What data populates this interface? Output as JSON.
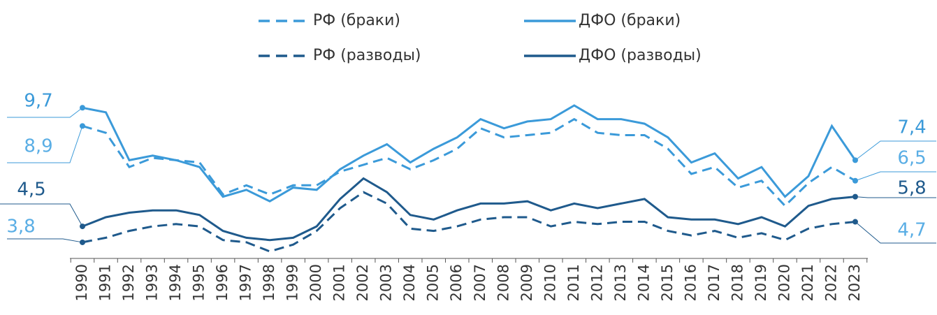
{
  "chart_data": {
    "type": "line",
    "categories": [
      "1990",
      "1991",
      "1992",
      "1993",
      "1994",
      "1995",
      "1996",
      "1997",
      "1998",
      "1999",
      "2000",
      "2001",
      "2002",
      "2003",
      "2004",
      "2005",
      "2006",
      "2007",
      "2008",
      "2009",
      "2010",
      "2011",
      "2012",
      "2013",
      "2014",
      "2015",
      "2016",
      "2017",
      "2018",
      "2019",
      "2020",
      "2021",
      "2022",
      "2023"
    ],
    "series": [
      {
        "name": "РФ (браки)",
        "color": "#3b9ad9",
        "dashed": true,
        "values": [
          8.9,
          8.6,
          7.1,
          7.5,
          7.4,
          7.3,
          5.9,
          6.3,
          5.9,
          6.3,
          6.3,
          6.9,
          7.2,
          7.5,
          7.0,
          7.4,
          7.9,
          8.8,
          8.4,
          8.5,
          8.6,
          9.2,
          8.6,
          8.5,
          8.5,
          7.9,
          6.8,
          7.1,
          6.2,
          6.5,
          5.4,
          6.4,
          7.1,
          6.5
        ],
        "value_labels": [
          "8,9",
          null,
          null,
          null,
          null,
          null,
          null,
          null,
          null,
          null,
          null,
          null,
          null,
          null,
          null,
          null,
          null,
          null,
          null,
          null,
          null,
          null,
          null,
          null,
          null,
          null,
          null,
          null,
          null,
          null,
          null,
          null,
          null,
          "6,5"
        ]
      },
      {
        "name": "ДФО (браки)",
        "color": "#3b9ad9",
        "dashed": false,
        "values": [
          9.7,
          9.5,
          7.4,
          7.6,
          7.4,
          7.1,
          5.8,
          6.1,
          5.6,
          6.2,
          6.1,
          7.0,
          7.6,
          8.1,
          7.3,
          7.9,
          8.4,
          9.2,
          8.8,
          9.1,
          9.2,
          9.8,
          9.2,
          9.2,
          9.0,
          8.4,
          7.3,
          7.7,
          6.6,
          7.1,
          5.8,
          6.7,
          8.9,
          7.4
        ],
        "value_labels": [
          "9,7",
          null,
          null,
          null,
          null,
          null,
          null,
          null,
          null,
          null,
          null,
          null,
          null,
          null,
          null,
          null,
          null,
          null,
          null,
          null,
          null,
          null,
          null,
          null,
          null,
          null,
          null,
          null,
          null,
          null,
          null,
          null,
          null,
          "7,4"
        ]
      },
      {
        "name": "РФ (разводы)",
        "color": "#1f5a8c",
        "dashed": true,
        "values": [
          3.8,
          4.0,
          4.3,
          4.5,
          4.6,
          4.5,
          3.9,
          3.8,
          3.4,
          3.7,
          4.3,
          5.3,
          6.0,
          5.5,
          4.4,
          4.3,
          4.5,
          4.8,
          4.9,
          4.9,
          4.5,
          4.7,
          4.6,
          4.7,
          4.7,
          4.3,
          4.1,
          4.3,
          4.0,
          4.2,
          3.9,
          4.4,
          4.6,
          4.7
        ],
        "value_labels": [
          "3,8",
          null,
          null,
          null,
          null,
          null,
          null,
          null,
          null,
          null,
          null,
          null,
          null,
          null,
          null,
          null,
          null,
          null,
          null,
          null,
          null,
          null,
          null,
          null,
          null,
          null,
          null,
          null,
          null,
          null,
          null,
          null,
          null,
          "4,7"
        ]
      },
      {
        "name": "ДФО (разводы)",
        "color": "#1f5a8c",
        "dashed": false,
        "values": [
          4.5,
          4.9,
          5.1,
          5.2,
          5.2,
          5.0,
          4.3,
          4.0,
          3.9,
          4.0,
          4.5,
          5.7,
          6.6,
          6.0,
          5.0,
          4.8,
          5.2,
          5.5,
          5.5,
          5.6,
          5.2,
          5.5,
          5.3,
          5.5,
          5.7,
          4.9,
          4.8,
          4.8,
          4.6,
          4.9,
          4.5,
          5.4,
          5.7,
          5.8
        ],
        "value_labels": [
          "4,5",
          null,
          null,
          null,
          null,
          null,
          null,
          null,
          null,
          null,
          null,
          null,
          null,
          null,
          null,
          null,
          null,
          null,
          null,
          null,
          null,
          null,
          null,
          null,
          null,
          null,
          null,
          null,
          null,
          null,
          null,
          null,
          null,
          "5,8"
        ]
      }
    ]
  }
}
